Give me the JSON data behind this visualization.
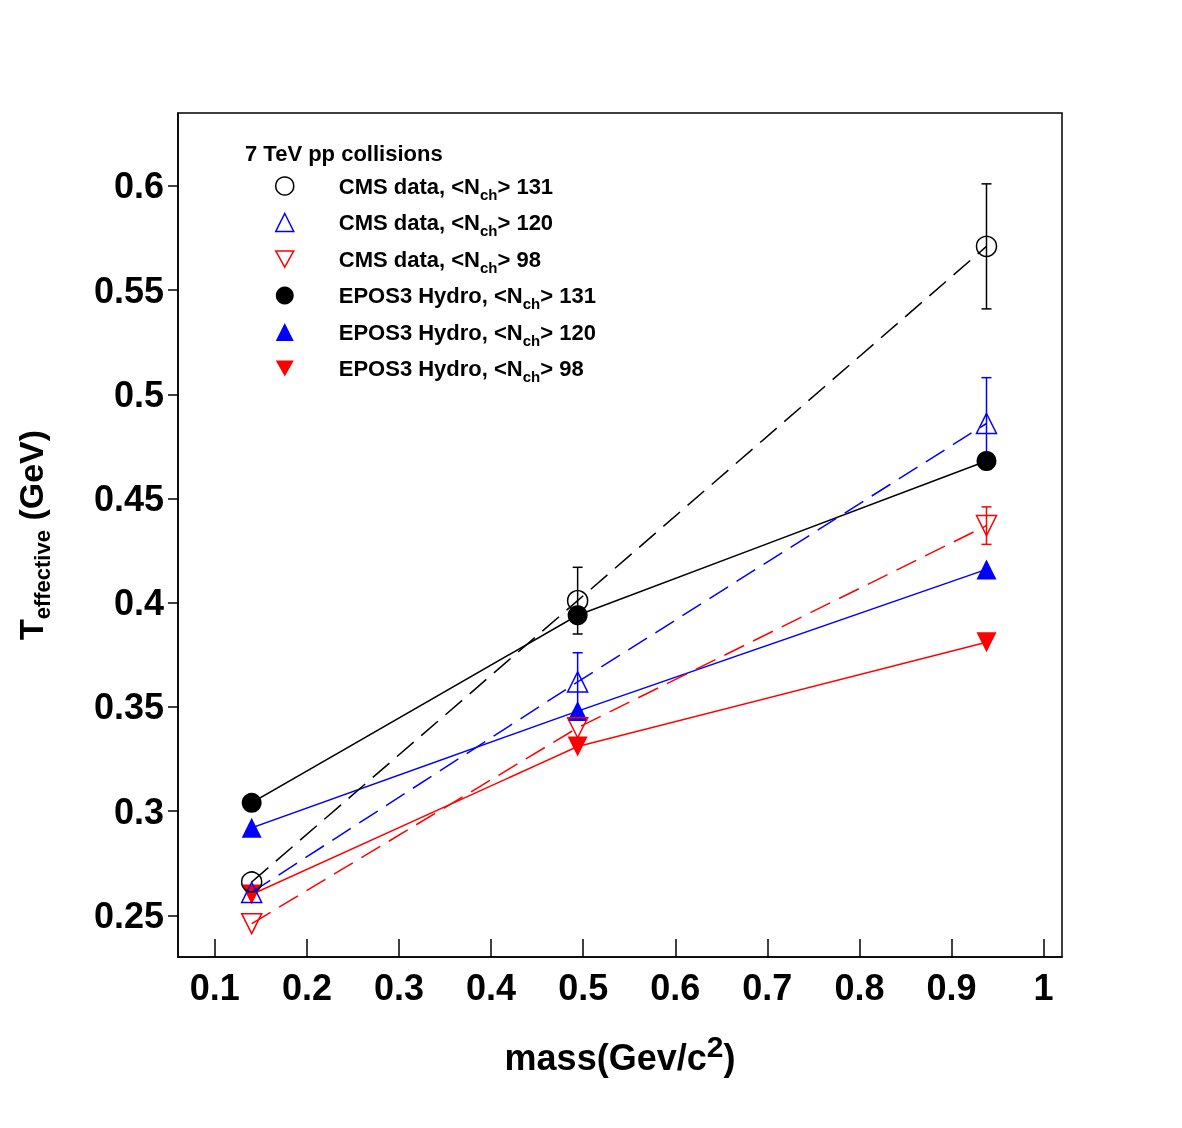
{
  "chart_data": {
    "type": "line",
    "xlabel": "mass(Gev/c$^{2}$)",
    "ylabel": "T$_{effective}$ (GeV)",
    "legend_title": "7 TeV pp collisions",
    "legend": "top left",
    "grid": false,
    "x": [
      0.14,
      0.494,
      0.938
    ],
    "xlim": [
      0.06,
      1.02
    ],
    "xticks": [
      0.1,
      0.2,
      0.3,
      0.4,
      0.5,
      0.6,
      0.7,
      0.8,
      0.9,
      1
    ],
    "ylim": [
      0.23,
      0.635
    ],
    "yticks": [
      0.25,
      0.3,
      0.35,
      0.4,
      0.45,
      0.5,
      0.55,
      0.6
    ],
    "series": [
      {
        "name": "CMS data, <N$_{ch}$> 131",
        "color": "#000000",
        "marker": "circle-open",
        "line_style": "dashed",
        "values": [
          0.266,
          0.401,
          0.571
        ],
        "errors": [
          null,
          0.016,
          0.03
        ]
      },
      {
        "name": "CMS data, <N$_{ch}$> 120",
        "color": "#0000ff",
        "marker": "triangle-open",
        "line_style": "dashed",
        "values": [
          0.261,
          0.362,
          0.486
        ],
        "errors": [
          null,
          0.014,
          0.022
        ]
      },
      {
        "name": "CMS data, <N$_{ch}$> 98",
        "color": "#ff0000",
        "marker": "triangle-down-open",
        "line_style": "dashed",
        "values": [
          0.246,
          0.34,
          0.437
        ],
        "errors": [
          null,
          null,
          0.009
        ]
      },
      {
        "name": "EPOS3 Hydro, <N$_{ch}$> 131",
        "color": "#000000",
        "marker": "circle",
        "line_style": "solid",
        "values": [
          0.304,
          0.394,
          0.468
        ]
      },
      {
        "name": "EPOS3 Hydro, <N$_{ch}$> 120",
        "color": "#0000ff",
        "marker": "triangle",
        "line_style": "solid",
        "values": [
          0.292,
          0.348,
          0.416
        ]
      },
      {
        "name": "EPOS3 Hydro, <N$_{ch}$> 98",
        "color": "#ff0000",
        "marker": "triangle-down",
        "line_style": "solid",
        "values": [
          0.26,
          0.331,
          0.381
        ]
      }
    ]
  }
}
